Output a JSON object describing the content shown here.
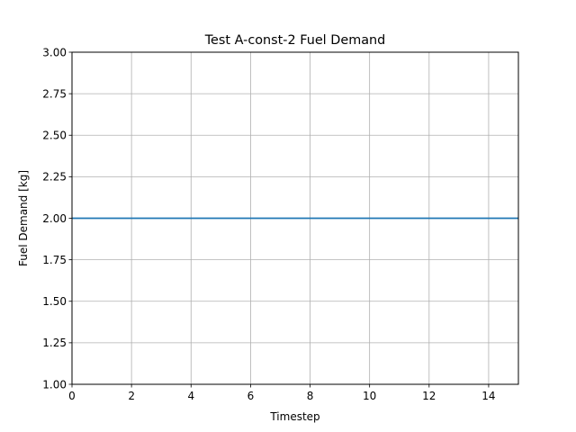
{
  "chart_data": {
    "type": "line",
    "title": "Test A-const-2 Fuel Demand",
    "xlabel": "Timestep",
    "ylabel": "Fuel Demand [kg]",
    "xlim": [
      0,
      15
    ],
    "ylim": [
      1.0,
      3.0
    ],
    "xticks": [
      0,
      2,
      4,
      6,
      8,
      10,
      12,
      14
    ],
    "xtick_labels": [
      "0",
      "2",
      "4",
      "6",
      "8",
      "10",
      "12",
      "14"
    ],
    "yticks": [
      1.0,
      1.25,
      1.5,
      1.75,
      2.0,
      2.25,
      2.5,
      2.75,
      3.0
    ],
    "ytick_labels": [
      "1.00",
      "1.25",
      "1.50",
      "1.75",
      "2.00",
      "2.25",
      "2.50",
      "2.75",
      "3.00"
    ],
    "grid": true,
    "series": [
      {
        "color": "#1f77b4",
        "x": [
          0,
          1,
          2,
          3,
          4,
          5,
          6,
          7,
          8,
          9,
          10,
          11,
          12,
          13,
          14,
          15
        ],
        "y": [
          2,
          2,
          2,
          2,
          2,
          2,
          2,
          2,
          2,
          2,
          2,
          2,
          2,
          2,
          2,
          2
        ]
      }
    ]
  }
}
